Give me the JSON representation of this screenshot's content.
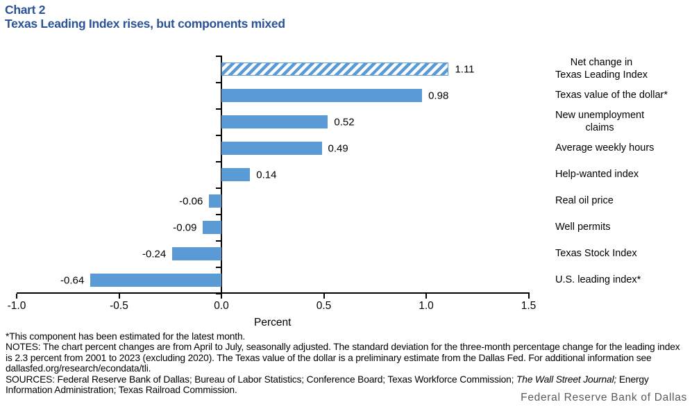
{
  "header": {
    "chart_label": "Chart 2",
    "title": "Texas Leading Index rises, but components mixed"
  },
  "chart_data": {
    "type": "bar",
    "orientation": "horizontal",
    "title": "Texas Leading Index rises, but components mixed",
    "categories": [
      "Net change in\nTexas Leading Index",
      "Texas value of the dollar*",
      "New unemployment\nclaims",
      "Average weekly hours",
      "Help-wanted index",
      "Real oil price",
      "Well permits",
      "Texas Stock Index",
      "U.S. leading index*"
    ],
    "values": [
      1.11,
      0.98,
      0.52,
      0.49,
      0.14,
      -0.06,
      -0.09,
      -0.24,
      -0.64
    ],
    "value_labels": [
      "1.11",
      "0.98",
      "0.52",
      "0.49",
      "0.14",
      "-0.06",
      "-0.09",
      "-0.24",
      "-0.64"
    ],
    "xlabel": "Percent",
    "xlim": [
      -1.0,
      1.5
    ],
    "xticks": [
      -1.0,
      -0.5,
      0.0,
      0.5,
      1.0,
      1.5
    ],
    "xtick_labels": [
      "-1.0",
      "-0.5",
      "0.0",
      "0.5",
      "1.0",
      "1.5"
    ],
    "bar_color": "#5b9bd5",
    "first_bar_style": "hatched",
    "grid": false,
    "legend": false
  },
  "footnotes": {
    "asterisk": "*This component has been estimated for the latest month.",
    "notes": "NOTES: The chart percent changes are from April to July, seasonally adjusted. The standard deviation for the three-month percentage change for the leading index is 2.3 percent from 2001 to 2023 (excluding 2020). The Texas value of the dollar is a preliminary estimate from the Dallas Fed. For additional information see dallasfed.org/research/econdata/tli.",
    "sources_pre": "SOURCES: Federal Reserve Bank of Dallas; Bureau of Labor Statistics; Conference Board; Texas Workforce Commission; ",
    "sources_italic": "The Wall Street Journal;",
    "sources_post": " Energy Information Administration; Texas Railroad Commission."
  },
  "branding": {
    "wordmark": "Federal Reserve Bank of Dallas"
  }
}
